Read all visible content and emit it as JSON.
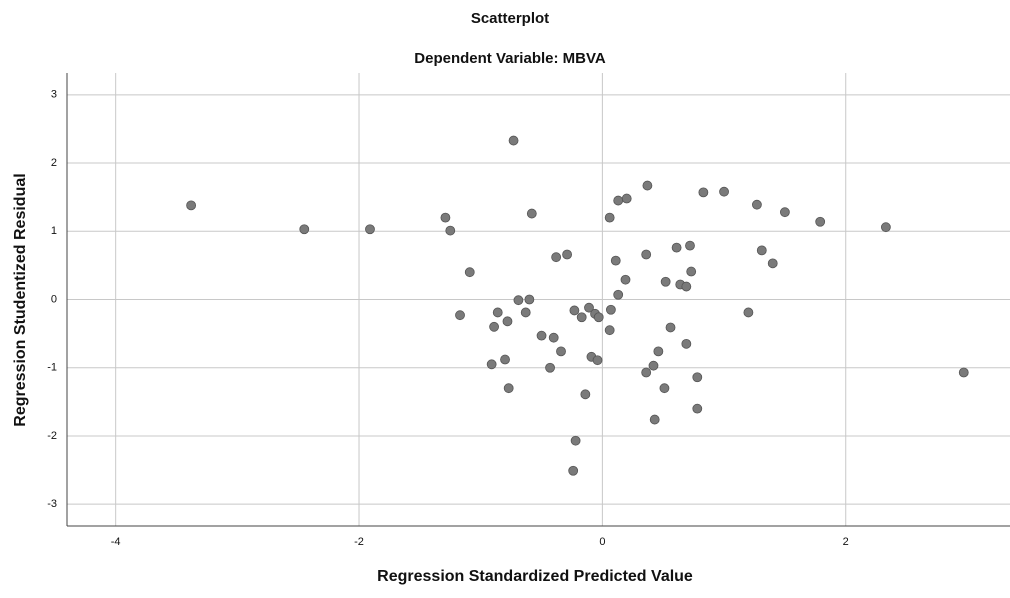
{
  "chart_data": {
    "type": "scatter",
    "title": "Scatterplot",
    "subtitle": "Dependent Variable: MBVA",
    "xlabel": "Regression Standardized Predicted Value",
    "ylabel": "Regression Studentized Residual",
    "color": "#7a7a7a",
    "grid": true,
    "xlim": [
      -4.4,
      3.35
    ],
    "ylim": [
      -3.32,
      3.32
    ],
    "xticks": [
      -4,
      -2,
      0,
      2
    ],
    "yticks": [
      -3,
      -2,
      -1,
      0,
      1,
      2,
      3
    ],
    "x": [
      -3.38,
      -2.45,
      -1.91,
      -1.29,
      -1.25,
      -0.73,
      -1.09,
      -1.17,
      -0.58,
      -0.86,
      -0.89,
      -0.78,
      -0.69,
      -0.6,
      -0.63,
      -0.5,
      -0.4,
      -0.34,
      -0.43,
      -0.91,
      -0.8,
      -0.77,
      -0.38,
      -0.29,
      -0.23,
      -0.17,
      -0.11,
      -0.06,
      -0.03,
      -0.09,
      -0.04,
      -0.14,
      -0.22,
      -0.24,
      0.06,
      0.13,
      0.2,
      0.37,
      0.11,
      0.19,
      0.13,
      0.07,
      0.06,
      0.36,
      0.52,
      0.56,
      0.46,
      0.36,
      0.42,
      0.51,
      0.43,
      0.61,
      0.72,
      0.64,
      0.69,
      0.73,
      0.69,
      0.78,
      0.78,
      0.83,
      1.0,
      1.27,
      1.31,
      1.4,
      1.5,
      1.79,
      1.2,
      2.33,
      2.97
    ],
    "y": [
      1.38,
      1.03,
      1.03,
      1.2,
      1.01,
      2.33,
      0.4,
      -0.23,
      1.26,
      -0.19,
      -0.4,
      -0.32,
      -0.01,
      0.0,
      -0.19,
      -0.53,
      -0.56,
      -0.76,
      -1.0,
      -0.95,
      -0.88,
      -1.3,
      0.62,
      0.66,
      -0.16,
      -0.26,
      -0.12,
      -0.21,
      -0.26,
      -0.84,
      -0.89,
      -1.39,
      -2.07,
      -2.51,
      1.2,
      1.45,
      1.48,
      1.67,
      0.57,
      0.29,
      0.07,
      -0.15,
      -0.45,
      0.66,
      0.26,
      -0.41,
      -0.76,
      -1.07,
      -0.97,
      -1.3,
      -1.76,
      0.76,
      0.79,
      0.22,
      0.19,
      0.41,
      -0.65,
      -1.14,
      -1.6,
      1.57,
      1.58,
      1.39,
      0.72,
      0.53,
      1.28,
      1.14,
      -0.19,
      1.06,
      -1.07
    ]
  }
}
